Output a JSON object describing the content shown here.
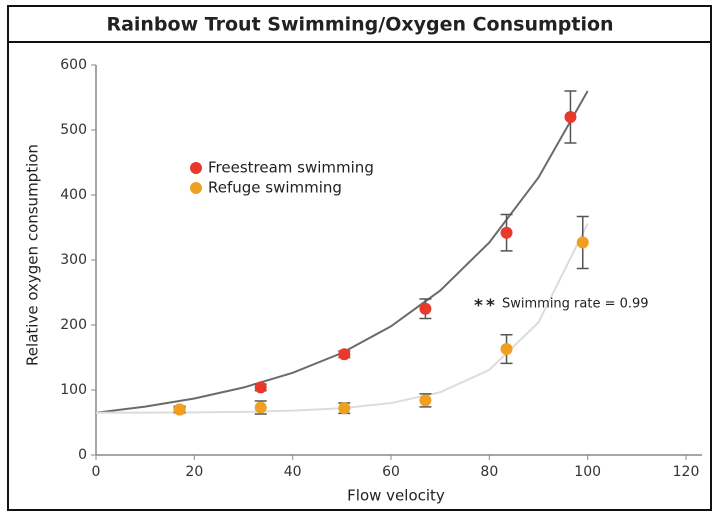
{
  "chart_data": {
    "type": "scatter",
    "title": "Rainbow Trout Swimming/Oxygen Consumption",
    "xlabel": "Flow velocity",
    "ylabel": "Relative oxygen consumption",
    "xlim": [
      0,
      120
    ],
    "ylim": [
      0,
      600
    ],
    "xticks": [
      0,
      20,
      40,
      60,
      80,
      100,
      120
    ],
    "yticks": [
      0,
      100,
      200,
      300,
      400,
      500,
      600
    ],
    "annotation": "Swimming rate = 0.99",
    "annotation_markers": [
      "*",
      "*"
    ],
    "series": [
      {
        "name": "Freestream swimming",
        "color": "#e8392b",
        "curve_color": "#6b6b6b",
        "x": [
          17,
          33.5,
          50.5,
          67,
          83.5,
          96.5
        ],
        "values": [
          70,
          104,
          155,
          225,
          342,
          520
        ],
        "errors": [
          3,
          5,
          5,
          15,
          28,
          40
        ],
        "fit": {
          "x": [
            0,
            10,
            20,
            30,
            40,
            50,
            60,
            70,
            80,
            90,
            100
          ],
          "y": [
            65,
            74.4,
            86.9,
            103.8,
            126.5,
            156.9,
            198,
            253,
            327,
            427,
            560
          ]
        }
      },
      {
        "name": "Refuge swimming",
        "color": "#f0a020",
        "curve_color": "#dcdcdc",
        "x": [
          17,
          33.5,
          50.5,
          67,
          83.5,
          99
        ],
        "values": [
          70,
          73,
          72,
          84,
          163,
          327
        ],
        "errors": [
          5,
          10,
          8,
          10,
          22,
          40
        ],
        "fit": {
          "x": [
            0,
            10,
            20,
            30,
            40,
            50,
            60,
            70,
            80,
            90,
            100
          ],
          "y": [
            65,
            65.2,
            65.6,
            66.4,
            68.2,
            72,
            79.9,
            96.4,
            131,
            204,
            356
          ]
        }
      }
    ]
  }
}
